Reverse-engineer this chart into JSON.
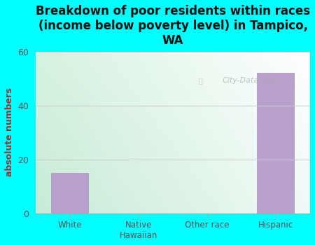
{
  "title": "Breakdown of poor residents within races\n(income below poverty level) in Tampico,\nWA",
  "categories": [
    "White",
    "Native\nHawaiian",
    "Other race",
    "Hispanic"
  ],
  "values": [
    15,
    0,
    0,
    52
  ],
  "bar_color": "#b8a0cc",
  "ylabel": "absolute numbers",
  "ylim": [
    0,
    60
  ],
  "yticks": [
    0,
    20,
    40,
    60
  ],
  "background_color": "#00ffff",
  "title_fontsize": 12,
  "ylabel_color": "#993333",
  "tick_color": "#555555",
  "grid_color": "#cccccc",
  "watermark": "City-Data.com"
}
